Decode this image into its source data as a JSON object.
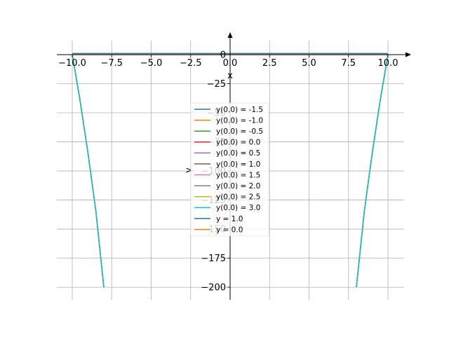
{
  "chart_data": {
    "type": "line",
    "xlabel": "x",
    "ylabel": "y",
    "xlim": [
      -10.5,
      10.5
    ],
    "ylim": [
      -210,
      10
    ],
    "xticks": [
      -10.0,
      -7.5,
      -5.0,
      -2.5,
      0.0,
      2.5,
      5.0,
      7.5,
      10.0
    ],
    "xtick_labels": [
      "−10.0",
      "−7.5",
      "−5.0",
      "−2.5",
      "0.0",
      "2.5",
      "5.0",
      "7.5",
      "10.0"
    ],
    "yticks": [
      0,
      -25,
      -50,
      -75,
      -100,
      -125,
      -150,
      -175,
      -200
    ],
    "ytick_labels": [
      "0",
      "−25",
      "−50",
      "−75",
      "−100",
      "−125",
      "−150",
      "−175",
      "−200"
    ],
    "grid": true,
    "legend_position": "center",
    "series": [
      {
        "name": "y(0.0) = -1.5",
        "color": "#1f77b4",
        "segments": [
          [
            [
              -10,
              0
            ],
            [
              -9.5,
              -40
            ],
            [
              -9,
              -85
            ],
            [
              -8.5,
              -135
            ],
            [
              -8,
              -200
            ]
          ],
          [
            [
              8,
              -200
            ],
            [
              8.5,
              -135
            ],
            [
              9,
              -85
            ],
            [
              9.5,
              -40
            ],
            [
              10,
              0
            ]
          ]
        ]
      },
      {
        "name": "y(0.0) = -1.0",
        "color": "#ff7f0e",
        "segments": [
          [
            [
              -10,
              0
            ],
            [
              -9.5,
              -40
            ],
            [
              -9,
              -85
            ],
            [
              -8.5,
              -135
            ],
            [
              -8,
              -200
            ]
          ],
          [
            [
              8,
              -200
            ],
            [
              8.5,
              -135
            ],
            [
              9,
              -85
            ],
            [
              9.5,
              -40
            ],
            [
              10,
              0
            ]
          ]
        ]
      },
      {
        "name": "y(0.0) = -0.5",
        "color": "#2ca02c",
        "segments": [
          [
            [
              -10,
              0
            ],
            [
              -9.5,
              -40
            ],
            [
              -9,
              -85
            ],
            [
              -8.5,
              -135
            ],
            [
              -8,
              -200
            ]
          ],
          [
            [
              8,
              -200
            ],
            [
              8.5,
              -135
            ],
            [
              9,
              -85
            ],
            [
              9.5,
              -40
            ],
            [
              10,
              0
            ]
          ]
        ]
      },
      {
        "name": "y(0.0) = 0.0",
        "color": "#d62728",
        "segments": [
          [
            [
              -10,
              0
            ],
            [
              -9.5,
              -40
            ],
            [
              -9,
              -85
            ],
            [
              -8.5,
              -135
            ],
            [
              -8,
              -200
            ]
          ],
          [
            [
              8,
              -200
            ],
            [
              8.5,
              -135
            ],
            [
              9,
              -85
            ],
            [
              9.5,
              -40
            ],
            [
              10,
              0
            ]
          ]
        ]
      },
      {
        "name": "y(0.0) = 0.5",
        "color": "#9467bd",
        "segments": [
          [
            [
              -10,
              0
            ],
            [
              -9.5,
              -40
            ],
            [
              -9,
              -85
            ],
            [
              -8.5,
              -135
            ],
            [
              -8,
              -200
            ]
          ],
          [
            [
              8,
              -200
            ],
            [
              8.5,
              -135
            ],
            [
              9,
              -85
            ],
            [
              9.5,
              -40
            ],
            [
              10,
              0
            ]
          ]
        ]
      },
      {
        "name": "y(0.0) = 1.0",
        "color": "#8c564b",
        "segments": [
          [
            [
              -10,
              0
            ],
            [
              -9.5,
              -40
            ],
            [
              -9,
              -85
            ],
            [
              -8.5,
              -135
            ],
            [
              -8,
              -200
            ]
          ],
          [
            [
              8,
              -200
            ],
            [
              8.5,
              -135
            ],
            [
              9,
              -85
            ],
            [
              9.5,
              -40
            ],
            [
              10,
              0
            ]
          ]
        ]
      },
      {
        "name": "y(0.0) = 1.5",
        "color": "#e377c2",
        "segments": [
          [
            [
              -10,
              0
            ],
            [
              -9.5,
              -40
            ],
            [
              -9,
              -85
            ],
            [
              -8.5,
              -135
            ],
            [
              -8,
              -200
            ]
          ],
          [
            [
              8,
              -200
            ],
            [
              8.5,
              -135
            ],
            [
              9,
              -85
            ],
            [
              9.5,
              -40
            ],
            [
              10,
              0
            ]
          ]
        ]
      },
      {
        "name": "y(0.0) = 2.0",
        "color": "#7f7f7f",
        "segments": [
          [
            [
              -10,
              0
            ],
            [
              -9.5,
              -40
            ],
            [
              -9,
              -85
            ],
            [
              -8.5,
              -135
            ],
            [
              -8,
              -200
            ]
          ],
          [
            [
              8,
              -200
            ],
            [
              8.5,
              -135
            ],
            [
              9,
              -85
            ],
            [
              9.5,
              -40
            ],
            [
              10,
              0
            ]
          ]
        ]
      },
      {
        "name": "y(0.0) = 2.5",
        "color": "#bcbd22",
        "segments": [
          [
            [
              -10,
              0
            ],
            [
              -9.5,
              -40
            ],
            [
              -9,
              -85
            ],
            [
              -8.5,
              -135
            ],
            [
              -8,
              -200
            ]
          ],
          [
            [
              8,
              -200
            ],
            [
              8.5,
              -135
            ],
            [
              9,
              -85
            ],
            [
              9.5,
              -40
            ],
            [
              10,
              0
            ]
          ]
        ]
      },
      {
        "name": "y(0.0) = 3.0",
        "color": "#17becf",
        "segments": [
          [
            [
              -10,
              0
            ],
            [
              -9.5,
              -40
            ],
            [
              -9,
              -85
            ],
            [
              -8.5,
              -135
            ],
            [
              -8,
              -200
            ]
          ],
          [
            [
              8,
              -200
            ],
            [
              8.5,
              -135
            ],
            [
              9,
              -85
            ],
            [
              9.5,
              -40
            ],
            [
              10,
              0
            ]
          ]
        ]
      },
      {
        "name": "y = 1.0",
        "color": "#1f77b4",
        "segments": [
          [
            [
              -10,
              1.0
            ],
            [
              10,
              1.0
            ]
          ]
        ]
      },
      {
        "name": "y = 0.0",
        "color": "#ff7f0e",
        "segments": [
          [
            [
              -10,
              0.0
            ],
            [
              10,
              0.0
            ]
          ]
        ]
      }
    ]
  }
}
